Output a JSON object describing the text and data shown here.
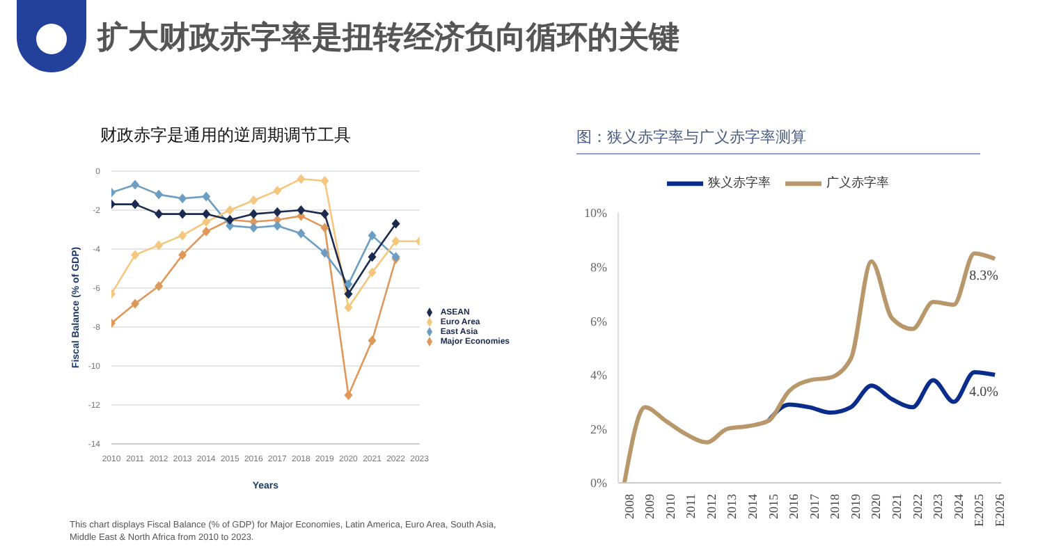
{
  "chart_data": [
    {
      "type": "line",
      "title": "扩大财政赤字率是扭转经济负向循环的关键",
      "subtitle": "财政赤字是通用的逆周期调节工具",
      "xlabel": "Years",
      "ylabel": "Fiscal Balance (% of GDP)",
      "x": [
        2010,
        2011,
        2012,
        2013,
        2014,
        2015,
        2016,
        2017,
        2018,
        2019,
        2020,
        2021,
        2022,
        2023
      ],
      "xlim": [
        2010,
        2023
      ],
      "xticks": [
        2010,
        2011,
        2012,
        2013,
        2014,
        2015,
        2016,
        2017,
        2018,
        2019,
        2020,
        2021,
        2022,
        2023
      ],
      "ylim": [
        -14,
        0
      ],
      "yticks": [
        -14,
        -12,
        -10,
        -8,
        -6,
        -4,
        -2,
        0
      ],
      "series": [
        {
          "name": "ASEAN",
          "color": "#1b2a4e",
          "values": [
            -1.7,
            -1.7,
            -2.2,
            -2.2,
            -2.2,
            -2.5,
            -2.2,
            -2.1,
            -2.0,
            -2.2,
            -6.3,
            -4.4,
            -2.7,
            null
          ]
        },
        {
          "name": "Euro Area",
          "color": "#f5c77e",
          "values": [
            -6.3,
            -4.3,
            -3.8,
            -3.3,
            -2.6,
            -2.0,
            -1.5,
            -1.0,
            -0.4,
            -0.5,
            -7.0,
            -5.2,
            -3.6,
            -3.6
          ]
        },
        {
          "name": "East Asia",
          "color": "#6c9ec4",
          "values": [
            -1.1,
            -0.7,
            -1.2,
            -1.4,
            -1.3,
            -2.8,
            -2.9,
            -2.8,
            -3.2,
            -4.2,
            -5.8,
            -3.3,
            -4.4,
            null
          ]
        },
        {
          "name": "Major Economies",
          "color": "#e0975a",
          "values": [
            -7.8,
            -6.8,
            -5.9,
            -4.3,
            -3.1,
            -2.5,
            -2.6,
            -2.5,
            -2.3,
            -2.9,
            -11.5,
            -8.7,
            -4.5,
            null
          ]
        }
      ],
      "grid": "y",
      "legend": "right",
      "marker": "diamond",
      "line_style": "solid",
      "annotations": [
        "This chart displays Fiscal Balance (% of GDP) for Major Economies, Latin America, Euro Area, South Asia, Middle East & North Africa from 2010 to 2023."
      ]
    },
    {
      "type": "line",
      "title": "图：狭义赤字率与广义赤字率测算",
      "categories": [
        "2008",
        "2009",
        "2010",
        "2011",
        "2012",
        "2013",
        "2014",
        "2015",
        "2016",
        "2017",
        "2018",
        "2019",
        "2020",
        "2021",
        "2022",
        "2023",
        "2024",
        "E2025",
        "E2026"
      ],
      "ylim": [
        0,
        10
      ],
      "yticks": [
        {
          "value": 0,
          "label": "0%"
        },
        {
          "value": 2,
          "label": "2%"
        },
        {
          "value": 4,
          "label": "4%"
        },
        {
          "value": 6,
          "label": "6%"
        },
        {
          "value": 8,
          "label": "8%"
        },
        {
          "value": 10,
          "label": "10%"
        }
      ],
      "series": [
        {
          "name": "狭义赤字率",
          "color": "#0a2d8c",
          "values": [
            null,
            null,
            null,
            null,
            null,
            null,
            null,
            2.3,
            2.9,
            2.8,
            2.6,
            2.8,
            3.6,
            3.1,
            2.8,
            3.8,
            3.0,
            4.1,
            4.0
          ]
        },
        {
          "name": "广义赤字率",
          "color": "#b8976a",
          "values": [
            0,
            2.8,
            2.3,
            1.8,
            1.5,
            2.0,
            2.1,
            2.3,
            3.4,
            3.8,
            3.9,
            4.6,
            8.2,
            6.1,
            5.7,
            6.7,
            6.6,
            8.5,
            8.3
          ]
        }
      ],
      "grid": false,
      "legend": "top",
      "marker": "none",
      "line_style": "solid",
      "annotations": [
        {
          "text": "8.3%",
          "x": "E2026",
          "y": 8.3
        },
        {
          "text": "4.0%",
          "x": "E2026",
          "y": 4.0
        }
      ]
    }
  ]
}
